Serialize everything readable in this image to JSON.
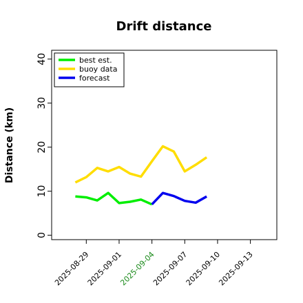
{
  "chart_data": {
    "type": "line",
    "title": "Drift distance",
    "ylabel": "Distance (km)",
    "xlabel": "",
    "ylim": [
      -1,
      42
    ],
    "yticks": [
      0,
      10,
      20,
      30,
      40
    ],
    "xlim": [
      "2025-08-25T20:00",
      "2025-09-15T10:00"
    ],
    "xticks": [
      {
        "label": "2025-08-29",
        "date": "2025-08-29",
        "color": "#000000"
      },
      {
        "label": "2025-09-01",
        "date": "2025-09-01",
        "color": "#000000"
      },
      {
        "label": "2025-09-04",
        "date": "2025-09-04",
        "color": "#1a8a1a"
      },
      {
        "label": "2025-09-07",
        "date": "2025-09-07",
        "color": "#000000"
      },
      {
        "label": "2025-09-10",
        "date": "2025-09-10",
        "color": "#000000"
      },
      {
        "label": "2025-09-13",
        "date": "2025-09-13",
        "color": "#000000"
      }
    ],
    "legend_position": "top-left",
    "grid": false,
    "series": [
      {
        "name": "best est.",
        "color": "#00ee00",
        "points": [
          [
            "2025-08-28",
            8.8
          ],
          [
            "2025-08-29",
            8.6
          ],
          [
            "2025-08-30",
            7.9
          ],
          [
            "2025-08-31",
            9.6
          ],
          [
            "2025-09-01",
            7.3
          ],
          [
            "2025-09-02",
            7.6
          ],
          [
            "2025-09-03",
            8.1
          ],
          [
            "2025-09-04",
            7.0
          ]
        ]
      },
      {
        "name": "buoy data",
        "color": "#ffdd00",
        "points": [
          [
            "2025-08-28",
            12.0
          ],
          [
            "2025-08-29",
            13.2
          ],
          [
            "2025-08-30",
            15.3
          ],
          [
            "2025-08-31",
            14.5
          ],
          [
            "2025-09-01",
            15.5
          ],
          [
            "2025-09-02",
            14.0
          ],
          [
            "2025-09-03",
            13.3
          ],
          [
            "2025-09-04",
            16.8
          ],
          [
            "2025-09-05",
            20.2
          ],
          [
            "2025-09-06",
            19.0
          ],
          [
            "2025-09-07",
            14.5
          ],
          [
            "2025-09-08",
            16.0
          ],
          [
            "2025-09-09",
            17.7
          ]
        ]
      },
      {
        "name": "forecast",
        "color": "#0000ee",
        "points": [
          [
            "2025-09-04",
            7.0
          ],
          [
            "2025-09-05",
            9.6
          ],
          [
            "2025-09-06",
            8.9
          ],
          [
            "2025-09-07",
            7.8
          ],
          [
            "2025-09-08",
            7.4
          ],
          [
            "2025-09-09",
            8.8
          ]
        ]
      }
    ]
  }
}
